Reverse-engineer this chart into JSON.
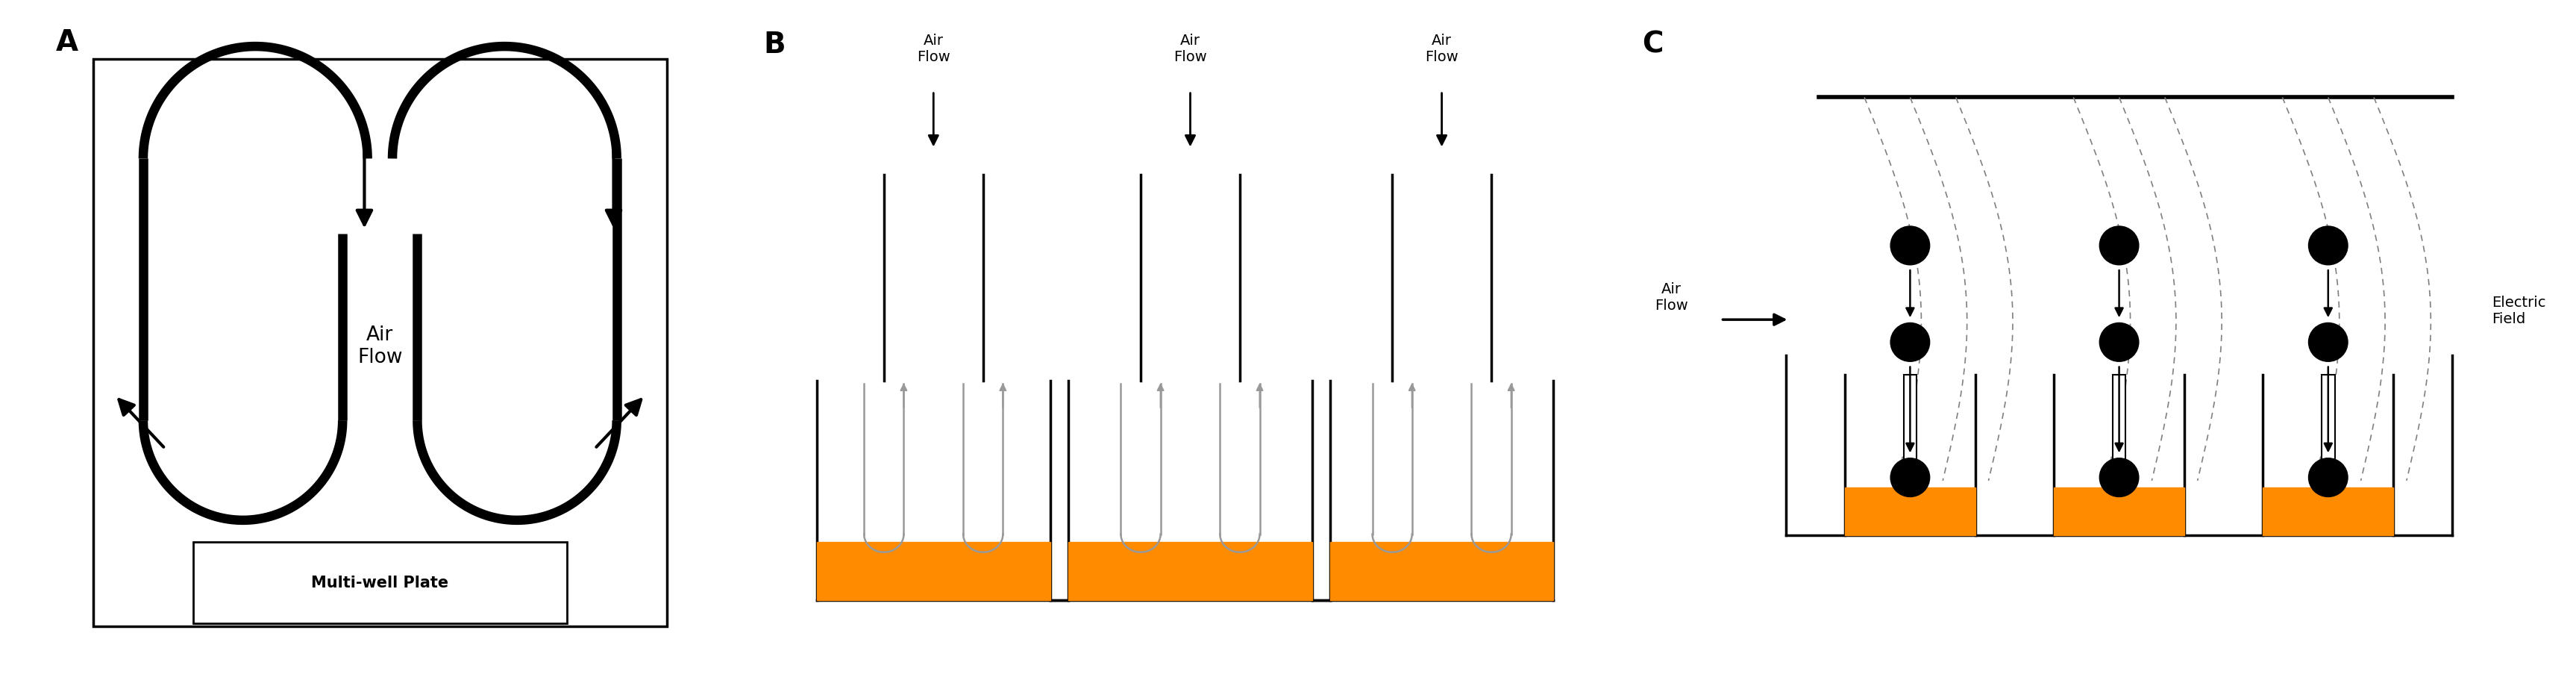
{
  "fig_width": 34.53,
  "fig_height": 9.28,
  "bg_color": "#ffffff",
  "orange_color": "#FF8C00",
  "black_color": "#000000",
  "gray_color": "#999999",
  "label_A": "A",
  "label_B": "B",
  "label_C": "C",
  "text_air_flow": "Air\nFlow",
  "text_multiwell": "Multi-well Plate",
  "text_electric_field": "Electric\nField",
  "lw_thick": 9,
  "lw_medium": 2.5,
  "lw_thin": 1.8
}
